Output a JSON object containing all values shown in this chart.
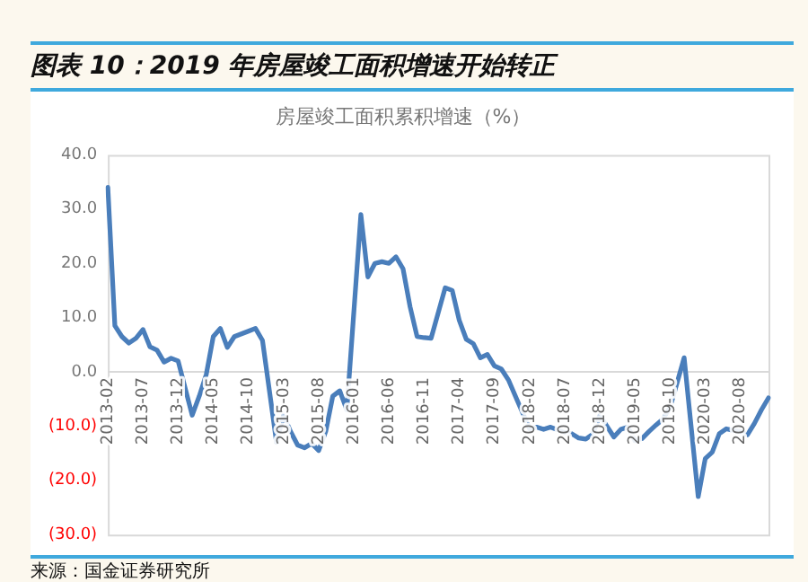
{
  "chart_data": {
    "type": "line",
    "title": "图表 10：2019 年房屋竣工面积增速开始转正",
    "subtitle": "房屋竣工面积累积增速（%）",
    "annotations": [
      "来源：国金证券研究所"
    ],
    "categories": [
      "2013-02",
      null,
      null,
      null,
      null,
      "2013-07",
      null,
      null,
      null,
      null,
      "2013-12",
      null,
      null,
      null,
      null,
      "2014-05",
      null,
      null,
      null,
      null,
      "2014-10",
      null,
      null,
      null,
      null,
      "2015-03",
      null,
      null,
      null,
      null,
      "2015-08",
      null,
      null,
      null,
      null,
      "2016-01",
      null,
      null,
      null,
      null,
      "2016-06",
      null,
      null,
      null,
      null,
      "2016-11",
      null,
      null,
      null,
      null,
      "2017-04",
      null,
      null,
      null,
      null,
      "2017-09",
      null,
      null,
      null,
      null,
      "2018-02",
      null,
      null,
      null,
      null,
      "2018-07",
      null,
      null,
      null,
      null,
      "2018-12",
      null,
      null,
      null,
      null,
      "2019-05",
      null,
      null,
      null,
      null,
      "2019-10",
      null,
      null,
      null,
      null,
      "2020-03",
      null,
      null,
      null,
      null,
      "2020-08",
      null,
      null,
      null,
      null
    ],
    "values": [
      34,
      8.5,
      6.5,
      5.3,
      6.2,
      7.8,
      4.6,
      4,
      1.8,
      2.5,
      2,
      null,
      -8,
      -4.5,
      -0.5,
      6.5,
      8,
      4.5,
      6.5,
      7,
      7.5,
      8,
      5.8,
      null,
      -13,
      -8,
      -11,
      -13.5,
      -14,
      -13.2,
      -14.5,
      -11,
      -4.5,
      -3.5,
      -7,
      null,
      29,
      17.5,
      20,
      20.3,
      20,
      21.2,
      19,
      12,
      6.5,
      6.3,
      6.2,
      null,
      15.5,
      15,
      9.5,
      6,
      5.2,
      2.6,
      3.2,
      1.1,
      0.5,
      -1.5,
      -4.5,
      null,
      -10.5,
      -10.2,
      -10.6,
      -10.2,
      -10.7,
      -11.2,
      -11.4,
      -12.2,
      -12.4,
      -11.5,
      -8,
      null,
      -12,
      -10.6,
      -10.2,
      -12.7,
      -12.3,
      -11,
      -9.8,
      -8.7,
      -6.5,
      -2,
      2.6,
      null,
      -23,
      -16,
      -14.8,
      -11.4,
      -10.5,
      -10.8,
      -11,
      -11.6,
      -9.5,
      -7,
      -4.8
    ],
    "color": "#4a7ebb",
    "ylim": [
      -30,
      40
    ],
    "yticks": [
      {
        "value": 40,
        "label": "40.0"
      },
      {
        "value": 30,
        "label": "30.0"
      },
      {
        "value": 20,
        "label": "20.0"
      },
      {
        "value": 10,
        "label": "10.0"
      },
      {
        "value": 0,
        "label": "0.0"
      },
      {
        "value": -10,
        "label": "(10.0)"
      },
      {
        "value": -20,
        "label": "(20.0)"
      },
      {
        "value": -30,
        "label": "(30.0)"
      }
    ],
    "grid": false,
    "legend": false,
    "marker": "none",
    "line_style": "solid"
  }
}
